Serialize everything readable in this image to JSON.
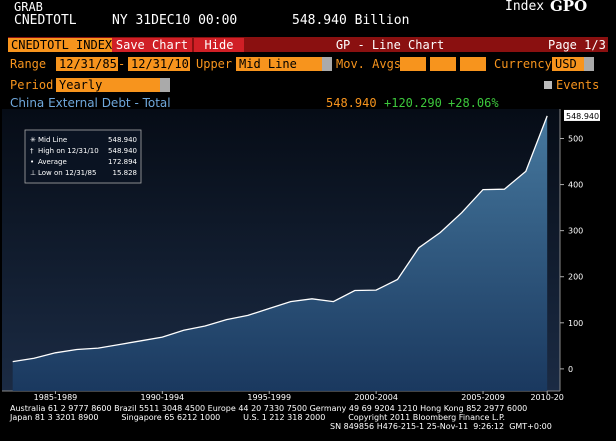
{
  "header": {
    "function": "GRAB",
    "ticker": "CNEDTOTL",
    "timestamp": "NY 31DEC10 00:00",
    "last": "548.940 Billion",
    "index_label": "Index",
    "code": "GPO"
  },
  "toolbar": {
    "security": "CNEDTOTL INDEX",
    "save": "Save Chart",
    "hide": "Hide",
    "title": "GP - Line Chart",
    "page": "Page 1/3"
  },
  "controls": {
    "range_label": "Range",
    "start": "12/31/85",
    "dash": "-",
    "end": "12/31/10",
    "upper_label": "Upper",
    "upper": "Mid Line",
    "mov_avgs": "Mov. Avgs",
    "currency_label": "Currency",
    "currency": "USD",
    "period_label": "Period",
    "period": "Yearly",
    "events": "Events"
  },
  "chart_data": {
    "type": "line",
    "title": "China External Debt - Total",
    "last": "548.940",
    "change": "+120.290",
    "change_pct": "+28.06%",
    "legend": [
      {
        "name": "Mid Line",
        "value": "548.940"
      },
      {
        "name": "High on 12/31/10",
        "value": "548.940"
      },
      {
        "name": "Average",
        "value": "172.894"
      },
      {
        "name": "Low on 12/31/85",
        "value": "15.828"
      }
    ],
    "last_tag": "548.940",
    "x": [
      1985,
      1986,
      1987,
      1988,
      1989,
      1990,
      1991,
      1992,
      1993,
      1994,
      1995,
      1996,
      1997,
      1998,
      1999,
      2000,
      2001,
      2002,
      2003,
      2004,
      2005,
      2006,
      2007,
      2008,
      2009,
      2010
    ],
    "series": [
      {
        "name": "Mid Line",
        "color": "#ffffff",
        "values": [
          15.828,
          23,
          35,
          42,
          45,
          53,
          61,
          69,
          84,
          93,
          107,
          116,
          131,
          146,
          152,
          146,
          170,
          171,
          194,
          263,
          296,
          339,
          389,
          390,
          428.65,
          548.94
        ]
      }
    ],
    "xlim": [
      1984.5,
      2010.6
    ],
    "ylim": [
      -48,
      564
    ],
    "yticks": [
      0,
      100,
      200,
      300,
      400,
      500
    ],
    "xticks": [
      {
        "value": 1987,
        "label": "1985-1989"
      },
      {
        "value": 1992,
        "label": "1990-1994"
      },
      {
        "value": 1997,
        "label": "1995-1999"
      },
      {
        "value": 2002,
        "label": "2000-2004"
      },
      {
        "value": 2007,
        "label": "2005-2009"
      },
      {
        "value": 2010,
        "label": "2010-20"
      }
    ]
  },
  "footer": {
    "lines": [
      "Australia 61 2 9777 8600 Brazil 5511 3048 4500 Europe 44 20 7330 7500 Germany 49 69 9204 1210 Hong Kong 852 2977 6000",
      "Japan 81 3 3201 8900         Singapore 65 6212 1000         U.S. 1 212 318 2000         Copyright 2011 Bloomberg Finance L.P.",
      "SN 849856 H476-215-1 25-Nov-11  9:26:12  GMT+0:00"
    ]
  }
}
